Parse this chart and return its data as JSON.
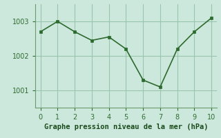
{
  "x": [
    0,
    1,
    2,
    3,
    4,
    5,
    6,
    7,
    8,
    9,
    10
  ],
  "y": [
    1002.7,
    1003.0,
    1002.7,
    1002.45,
    1002.55,
    1002.2,
    1001.3,
    1001.1,
    1002.2,
    1002.7,
    1003.1
  ],
  "line_color": "#2d6a2d",
  "marker_color": "#2d6a2d",
  "bg_color": "#cce8dc",
  "grid_color": "#99c4b0",
  "xlabel": "Graphe pression niveau de la mer (hPa)",
  "xlabel_color": "#1a4a1a",
  "ylim": [
    1000.5,
    1003.5
  ],
  "xlim": [
    -0.3,
    10.3
  ],
  "yticks": [
    1001,
    1002,
    1003
  ],
  "xticks": [
    0,
    1,
    2,
    3,
    4,
    5,
    6,
    7,
    8,
    9,
    10
  ],
  "tick_color": "#2d6a2d",
  "spine_color": "#6a9a6a"
}
